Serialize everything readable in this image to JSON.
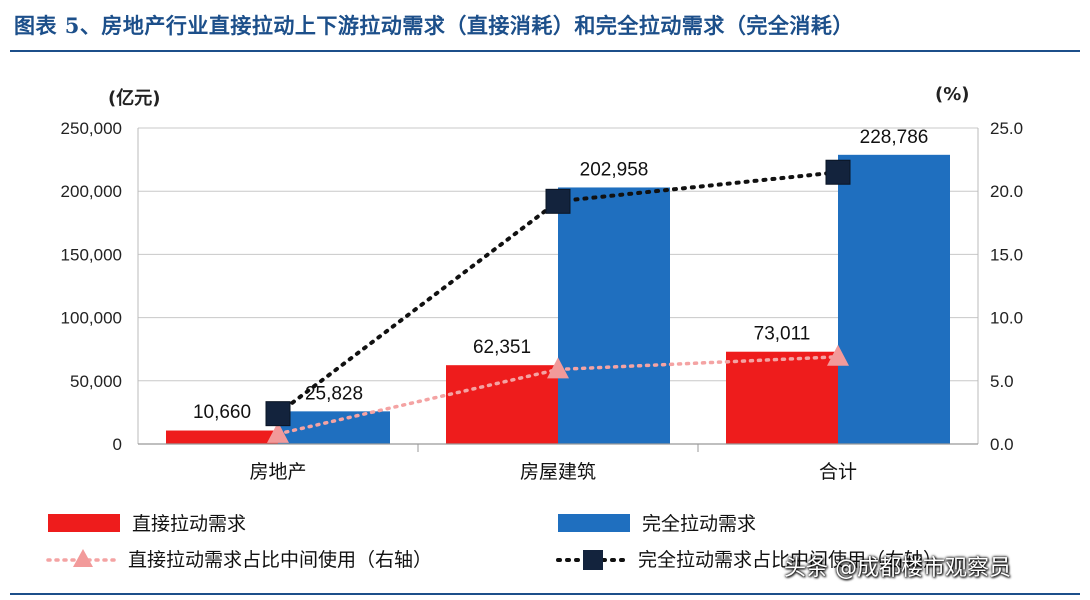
{
  "title": "图表 5、房地产行业直接拉动上下游拉动需求（直接消耗）和完全拉动需求（完全消耗）",
  "watermark": "头条 @成都楼市观察员",
  "colors": {
    "direct_bar": "#ee1c1c",
    "total_bar": "#1f6fbf",
    "direct_share_line": "#f4a3a3",
    "direct_share_marker": "#f29a9a",
    "total_share_line": "#111111",
    "total_share_marker": "#13233d",
    "accent": "#1c4f8a"
  },
  "chart_data": {
    "type": "bar",
    "categories": [
      "房地产",
      "房屋建筑",
      "合计"
    ],
    "y_left": {
      "unit_label": "(亿元)",
      "ylim": [
        0,
        250000
      ],
      "ticks": [
        0,
        50000,
        100000,
        150000,
        200000,
        250000
      ],
      "tick_labels": [
        "0",
        "50,000",
        "100,000",
        "150,000",
        "200,000",
        "250,000"
      ]
    },
    "y_right": {
      "unit_label": "(%)",
      "ylim": [
        0,
        25
      ],
      "ticks": [
        0,
        5,
        10,
        15,
        20,
        25
      ],
      "tick_labels": [
        "0.0",
        "5.0",
        "10.0",
        "15.0",
        "20.0",
        "25.0"
      ]
    },
    "grid": true,
    "legend_position": "bottom",
    "series": [
      {
        "name": "直接拉动需求",
        "kind": "bar",
        "axis": "left",
        "values": [
          10660,
          62351,
          73011
        ],
        "labels": [
          "10,660",
          "62,351",
          "73,011"
        ]
      },
      {
        "name": "完全拉动需求",
        "kind": "bar",
        "axis": "left",
        "values": [
          25828,
          202958,
          228786
        ],
        "labels": [
          "25,828",
          "202,958",
          "228,786"
        ]
      },
      {
        "name": "直接拉动需求占比中间使用（右轴）",
        "kind": "line",
        "axis": "right",
        "marker": "triangle",
        "values": [
          0.8,
          5.9,
          6.9
        ]
      },
      {
        "name": "完全拉动需求占比中间使用（右轴）",
        "kind": "line",
        "axis": "right",
        "marker": "square",
        "values": [
          2.4,
          19.2,
          21.5
        ]
      }
    ],
    "legend_labels": [
      "直接拉动需求",
      "完全拉动需求",
      "直接拉动需求占比中间使用（右轴）",
      "完全拉动需求占比中间使用（右轴）"
    ]
  }
}
